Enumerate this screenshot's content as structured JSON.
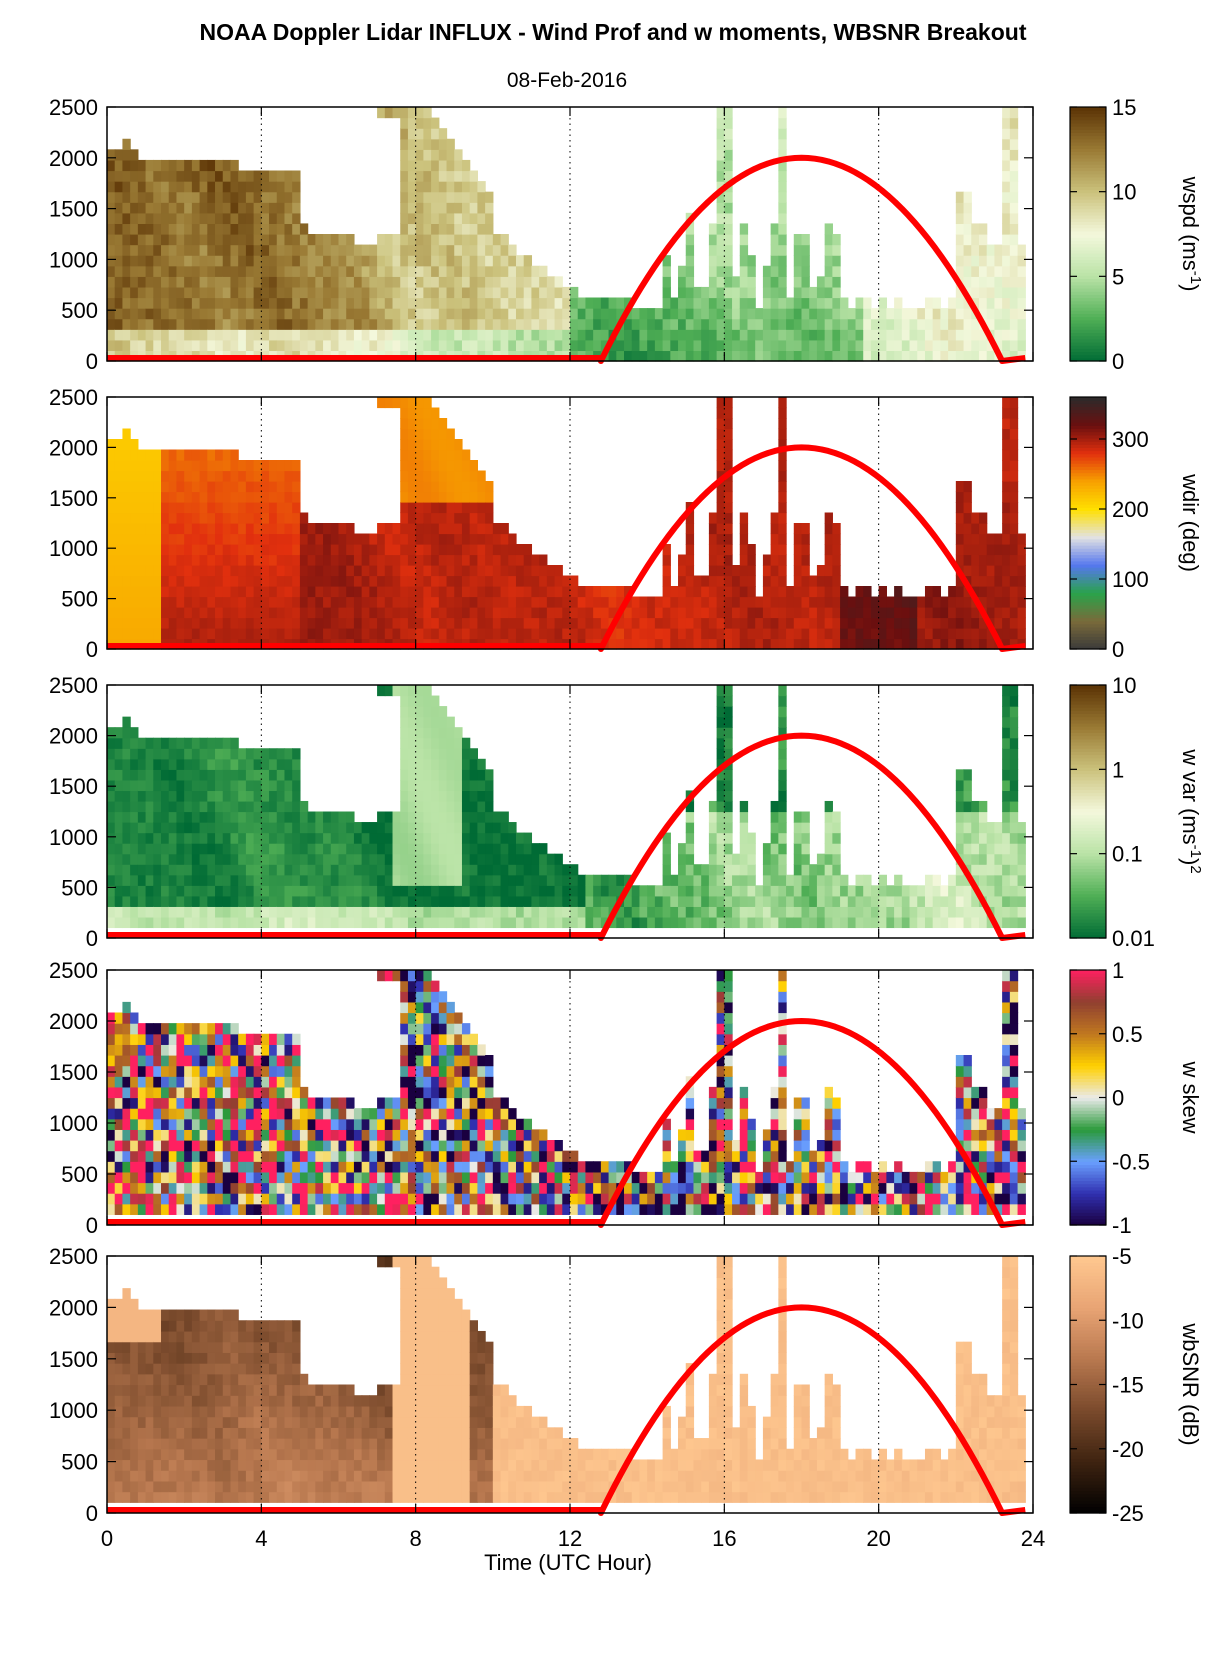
{
  "figure": {
    "title": "NOAA Doppler Lidar INFLUX - Wind Prof and w moments, WBSNR Breakout",
    "date": "08-Feb-2016",
    "xlabel": "Time (UTC Hour)"
  },
  "chart_data": [
    {
      "type": "heatmap",
      "field": "wspd",
      "cbar_label": "wspd (ms",
      "cbar_label_sup": "-1",
      "cbar_label_end": ")",
      "clim": [
        0,
        15
      ],
      "cticks": [
        0,
        5,
        10,
        15
      ],
      "ctick_labels": [
        "0",
        "5",
        "10",
        "15"
      ],
      "colormap": [
        "#006b35",
        "#4fae55",
        "#b9e3a6",
        "#f4f8dc",
        "#cbc27c",
        "#9a7a34",
        "#5b3305"
      ],
      "xlim": [
        0,
        24
      ],
      "ylim": [
        0,
        2500
      ],
      "yticks": [
        0,
        500,
        1000,
        1500,
        2000,
        2500
      ],
      "grid": "vertical dotted at 4, 8, 12, 16, 20",
      "sun_curve": {
        "color": "#ff0000",
        "rise_hour": 12.8,
        "set_hour": 23.2,
        "peak_hour": 18,
        "peak": 2000
      }
    },
    {
      "type": "heatmap",
      "field": "wdir",
      "cbar_label": "wdir (deg)",
      "clim": [
        0,
        360
      ],
      "cticks": [
        0,
        100,
        200,
        300
      ],
      "ctick_labels": [
        "0",
        "100",
        "200",
        "300"
      ],
      "colormap": [
        "#3a3a3a",
        "#7a6a3a",
        "#2aa34a",
        "#5577ee",
        "#e2e2e2",
        "#ffe000",
        "#f7a000",
        "#e2300e",
        "#6a0f0f",
        "#2b2b2b"
      ],
      "xlim": [
        0,
        24
      ],
      "ylim": [
        0,
        2500
      ],
      "yticks": [
        0,
        500,
        1000,
        1500,
        2000,
        2500
      ],
      "sun_curve": {
        "color": "#ff0000",
        "rise_hour": 12.8,
        "set_hour": 23.2,
        "peak_hour": 18,
        "peak": 2000
      }
    },
    {
      "type": "heatmap",
      "field": "w var",
      "cbar_label": "w var (ms",
      "cbar_label_sup": "-1",
      "cbar_label_end": ")",
      "cbar_label_sup2": "2",
      "clim": [
        0.01,
        10
      ],
      "scale": "log",
      "cticks": [
        0.01,
        0.1,
        1,
        10
      ],
      "ctick_labels": [
        "0.01",
        "0.1",
        "1",
        "10"
      ],
      "colormap": [
        "#006b35",
        "#4fae55",
        "#b9e3a6",
        "#f4f8dc",
        "#cbc27c",
        "#9a7a34",
        "#5b3305"
      ],
      "xlim": [
        0,
        24
      ],
      "ylim": [
        0,
        2500
      ],
      "yticks": [
        0,
        500,
        1000,
        1500,
        2000,
        2500
      ],
      "sun_curve": {
        "color": "#ff0000",
        "rise_hour": 12.8,
        "set_hour": 23.2,
        "peak_hour": 18,
        "peak": 2000
      }
    },
    {
      "type": "heatmap",
      "field": "w skew",
      "cbar_label": "w skew",
      "clim": [
        -1,
        1
      ],
      "cticks": [
        -1,
        -0.5,
        0,
        0.5,
        1
      ],
      "ctick_labels": [
        "-1",
        "-0.5",
        "0",
        "0.5",
        "1"
      ],
      "colormap": [
        "#1a0040",
        "#3030b0",
        "#6aa0ff",
        "#2a9a3a",
        "#eaeaea",
        "#ffd000",
        "#c07820",
        "#904030",
        "#ff2060"
      ],
      "xlim": [
        0,
        24
      ],
      "ylim": [
        0,
        2500
      ],
      "yticks": [
        0,
        500,
        1000,
        1500,
        2000,
        2500
      ],
      "sun_curve": {
        "color": "#ff0000",
        "rise_hour": 12.8,
        "set_hour": 23.2,
        "peak_hour": 18,
        "peak": 2000
      }
    },
    {
      "type": "heatmap",
      "field": "wbSNR",
      "cbar_label": "wbSNR (dB)",
      "clim": [
        -25,
        -5
      ],
      "cticks": [
        -25,
        -20,
        -15,
        -10,
        -5
      ],
      "ctick_labels": [
        "-25",
        "-20",
        "-15",
        "-10",
        "-5"
      ],
      "colormap": [
        "#000000",
        "#3e2310",
        "#7a4a2c",
        "#b8784f",
        "#e8a474",
        "#ffc890"
      ],
      "xlim": [
        0,
        24
      ],
      "ylim": [
        0,
        2500
      ],
      "yticks": [
        0,
        500,
        1000,
        1500,
        2000,
        2500
      ],
      "xticks": [
        0,
        4,
        8,
        12,
        16,
        20,
        24
      ],
      "xtick_labels": [
        "0",
        "4",
        "8",
        "12",
        "16",
        "20",
        "24"
      ],
      "sun_curve": {
        "color": "#ff0000",
        "rise_hour": 12.8,
        "set_hour": 23.2,
        "peak_hour": 18,
        "peak": 2000
      }
    }
  ]
}
